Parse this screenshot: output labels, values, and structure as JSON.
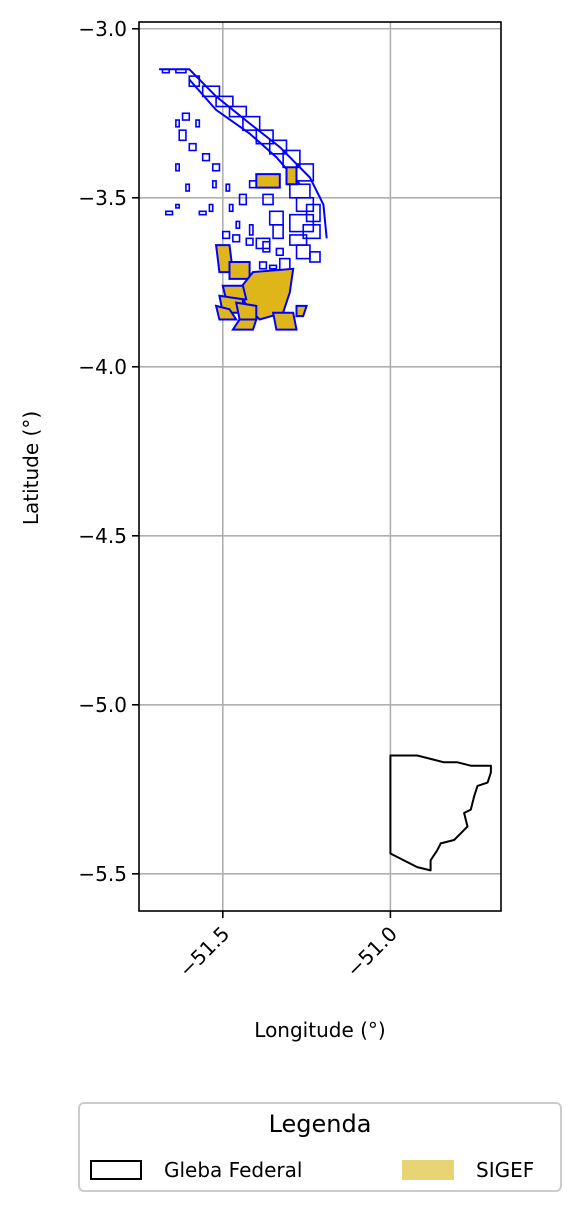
{
  "chart_data": {
    "type": "map",
    "xlabel": "Longitude (°)",
    "ylabel": "Latitude (°)",
    "xlim": [
      -51.75,
      -50.67
    ],
    "ylim": [
      -5.61,
      -2.98
    ],
    "xticks": [
      -51.5,
      -51.0
    ],
    "xtick_labels": [
      "−51.5",
      "−51.0"
    ],
    "yticks": [
      -3.0,
      -3.5,
      -4.0,
      -4.5,
      -5.0,
      -5.5
    ],
    "ytick_labels": [
      "−3.0",
      "−3.5",
      "−4.0",
      "−4.5",
      "−5.0",
      "−5.5"
    ],
    "grid": true,
    "legend_placement": "bottom-center outside",
    "colors": {
      "gleba_edge": "#000000",
      "sigef_fill": "#dfb61a",
      "sigef_legend": "#e8d474",
      "parcel_edge": "#0000ff",
      "grid": "#b0b0b0"
    },
    "layers": [
      {
        "name": "Gleba Federal",
        "style": "outline",
        "polygon": [
          [
            -51.0,
            -5.15
          ],
          [
            -50.92,
            -5.15
          ],
          [
            -50.88,
            -5.16
          ],
          [
            -50.84,
            -5.17
          ],
          [
            -50.8,
            -5.17
          ],
          [
            -50.76,
            -5.18
          ],
          [
            -50.7,
            -5.18
          ],
          [
            -50.7,
            -5.2
          ],
          [
            -50.71,
            -5.23
          ],
          [
            -50.74,
            -5.24
          ],
          [
            -50.75,
            -5.27
          ],
          [
            -50.76,
            -5.31
          ],
          [
            -50.78,
            -5.32
          ],
          [
            -50.77,
            -5.36
          ],
          [
            -50.79,
            -5.38
          ],
          [
            -50.81,
            -5.4
          ],
          [
            -50.85,
            -5.41
          ],
          [
            -50.86,
            -5.43
          ],
          [
            -50.88,
            -5.46
          ],
          [
            -50.88,
            -5.49
          ],
          [
            -50.92,
            -5.48
          ],
          [
            -51.0,
            -5.44
          ]
        ]
      },
      {
        "name": "SIGEF",
        "style": "fill",
        "polygons": [
          [
            [
              -51.52,
              -3.64
            ],
            [
              -51.48,
              -3.64
            ],
            [
              -51.47,
              -3.72
            ],
            [
              -51.51,
              -3.72
            ]
          ],
          [
            [
              -51.48,
              -3.69
            ],
            [
              -51.42,
              -3.69
            ],
            [
              -51.42,
              -3.74
            ],
            [
              -51.48,
              -3.74
            ]
          ],
          [
            [
              -51.41,
              -3.72
            ],
            [
              -51.29,
              -3.71
            ],
            [
              -51.3,
              -3.78
            ],
            [
              -51.32,
              -3.84
            ],
            [
              -51.39,
              -3.86
            ],
            [
              -51.43,
              -3.82
            ],
            [
              -51.45,
              -3.77
            ]
          ],
          [
            [
              -51.5,
              -3.76
            ],
            [
              -51.44,
              -3.76
            ],
            [
              -51.43,
              -3.8
            ],
            [
              -51.49,
              -3.8
            ]
          ],
          [
            [
              -51.51,
              -3.79
            ],
            [
              -51.44,
              -3.8
            ],
            [
              -51.44,
              -3.84
            ],
            [
              -51.5,
              -3.84
            ]
          ],
          [
            [
              -51.52,
              -3.82
            ],
            [
              -51.48,
              -3.83
            ],
            [
              -51.46,
              -3.86
            ],
            [
              -51.51,
              -3.86
            ]
          ],
          [
            [
              -51.46,
              -3.81
            ],
            [
              -51.4,
              -3.82
            ],
            [
              -51.4,
              -3.86
            ],
            [
              -51.45,
              -3.86
            ]
          ],
          [
            [
              -51.45,
              -3.86
            ],
            [
              -51.4,
              -3.86
            ],
            [
              -51.41,
              -3.89
            ],
            [
              -51.47,
              -3.89
            ]
          ],
          [
            [
              -51.35,
              -3.84
            ],
            [
              -51.29,
              -3.84
            ],
            [
              -51.28,
              -3.89
            ],
            [
              -51.34,
              -3.89
            ]
          ],
          [
            [
              -51.28,
              -3.82
            ],
            [
              -51.25,
              -3.82
            ],
            [
              -51.26,
              -3.85
            ],
            [
              -51.28,
              -3.85
            ]
          ],
          [
            [
              -51.4,
              -3.43
            ],
            [
              -51.33,
              -3.43
            ],
            [
              -51.33,
              -3.47
            ],
            [
              -51.4,
              -3.47
            ]
          ],
          [
            [
              -51.31,
              -3.41
            ],
            [
              -51.28,
              -3.41
            ],
            [
              -51.28,
              -3.46
            ],
            [
              -51.31,
              -3.46
            ]
          ]
        ]
      }
    ]
  },
  "legend": {
    "title": "Legenda",
    "items": [
      {
        "label": "Gleba Federal",
        "type": "outline"
      },
      {
        "label": "SIGEF",
        "type": "fill"
      }
    ]
  }
}
